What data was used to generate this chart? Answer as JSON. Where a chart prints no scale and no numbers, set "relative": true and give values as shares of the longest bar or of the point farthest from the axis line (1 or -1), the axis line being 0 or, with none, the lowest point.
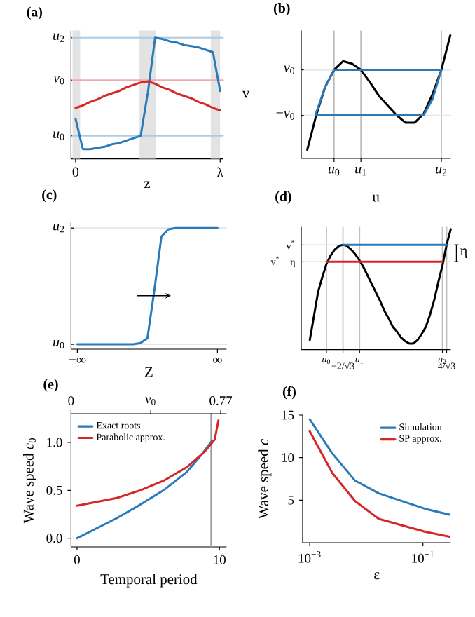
{
  "chart_data": [
    {
      "type": "line",
      "title": "(a)",
      "xlabel": "z",
      "relative": true,
      "categories": [
        "0",
        null,
        null,
        null,
        null,
        null,
        null,
        null,
        null,
        null,
        null,
        null,
        null,
        null,
        null,
        null,
        null,
        null,
        null,
        null,
        "λ"
      ],
      "ref_lines": [
        {
          "axis": "y",
          "value": 1,
          "color": "#a9cbe6",
          "label": "*u*$_{2}$"
        },
        {
          "axis": "y",
          "value": 0.19,
          "color": "#a9cbe6",
          "label": "*u*$_{0}$"
        },
        {
          "axis": "y",
          "value": 0.65,
          "color": "#f2abab",
          "label": "*v*$_{0}$"
        }
      ],
      "series": [
        {
          "color": "#2a7ab9",
          "values": [
            0.33,
            0.08,
            0.08,
            0.09,
            0.1,
            0.12,
            0.13,
            0.15,
            0.17,
            0.19,
            0.55,
            1,
            0.99,
            0.97,
            0.96,
            0.94,
            0.93,
            0.92,
            0.9,
            0.88,
            0.56
          ]
        },
        {
          "color": "#d62728",
          "values": [
            0.42,
            0.44,
            0.47,
            0.49,
            0.52,
            0.54,
            0.56,
            0.59,
            0.61,
            0.63,
            0.64,
            0.62,
            0.59,
            0.57,
            0.54,
            0.52,
            0.5,
            0.47,
            0.45,
            0.42,
            0.4
          ]
        }
      ]
    },
    {
      "type": "line",
      "title": "(b)",
      "xlabel": "u",
      "ylabel": "v",
      "relative": true,
      "grid": "x",
      "categories": [
        null,
        null,
        null,
        "*u*$_{0}$",
        null,
        null,
        "*u*$_{1}$",
        null,
        null,
        null,
        null,
        null,
        null,
        null,
        null,
        "*u*$_{2}$",
        null
      ],
      "ref_lines": [
        {
          "axis": "y",
          "value": 0.35,
          "color": "#e6e6e6",
          "label": "−*v*$_{0}$"
        },
        {
          "axis": "y",
          "value": 0.72,
          "color": "#e6e6e6",
          "label": "*v*$_{0}$"
        }
      ],
      "series": [
        {
          "color": "#000000",
          "values": [
            0.07,
            0.35,
            0.58,
            0.72,
            0.79,
            0.77,
            0.72,
            0.62,
            0.51,
            0.43,
            0.35,
            0.29,
            0.29,
            0.36,
            0.52,
            0.72,
            1
          ]
        },
        {
          "color": "#2a7ab9",
          "values": [
            null,
            0.37,
            0.58,
            0.72,
            0.72,
            0.72,
            0.72,
            0.72,
            0.72,
            0.72,
            0.72,
            0.72,
            0.72,
            0.72,
            0.72,
            0.72,
            null
          ]
        },
        {
          "color": "#2a7ab9",
          "values": [
            null,
            0.35,
            0.35,
            0.35,
            0.35,
            0.35,
            0.35,
            0.35,
            0.35,
            0.35,
            0.35,
            0.35,
            0.35,
            0.35,
            0.48,
            0.72,
            null
          ]
        }
      ]
    },
    {
      "type": "line",
      "title": "(c)",
      "xlabel": "Z",
      "relative": true,
      "categories": [
        "−∞",
        null,
        null,
        null,
        null,
        null,
        null,
        null,
        null,
        null,
        null,
        null,
        null,
        null,
        null,
        null,
        null,
        null,
        null,
        null,
        "∞"
      ],
      "ref_lines": [
        {
          "axis": "y",
          "value": 0.04,
          "color": "#e6e6e6",
          "label": "*u*$_{0}$"
        },
        {
          "axis": "y",
          "value": 1,
          "color": "#e6e6e6",
          "label": "*u*$_{2}$"
        }
      ],
      "series": [
        {
          "color": "#2a7ab9",
          "values": [
            0.04,
            0.04,
            0.04,
            0.04,
            0.04,
            0.04,
            0.04,
            0.04,
            0.04,
            0.05,
            0.09,
            0.49,
            0.93,
            0.99,
            1,
            1,
            1,
            1,
            1,
            1,
            1
          ]
        }
      ]
    },
    {
      "type": "line",
      "title": "(d)",
      "relative": true,
      "grid": "x",
      "categories": [
        null,
        null,
        null,
        null,
        null,
        "*u*$_{0}$",
        null,
        null,
        null,
        "−2/√3",
        null,
        null,
        null,
        "*u*$_{1}$",
        null,
        null,
        null,
        null,
        null,
        null,
        null,
        null,
        null,
        null,
        null,
        null,
        null,
        null,
        null,
        null,
        null,
        null,
        null,
        "*u*$_{2}$",
        "4/√3",
        null
      ],
      "ref_lines": [
        {
          "axis": "y",
          "value": 0.73,
          "color": "#e6e6e6",
          "label": "v$^{*}$ − η"
        },
        {
          "axis": "y",
          "value": 0.87,
          "color": "#e6e6e6",
          "label": "v$^{*}$"
        }
      ],
      "annotations": [
        "η"
      ],
      "series": [
        {
          "color": "#000000",
          "values": [
            null,
            0.08,
            0.28,
            0.48,
            0.6,
            0.71,
            0.78,
            0.83,
            0.86,
            0.87,
            0.86,
            0.83,
            0.79,
            0.74,
            0.68,
            0.61,
            0.54,
            0.47,
            0.4,
            0.32,
            0.26,
            0.19,
            0.15,
            0.1,
            0.07,
            0.05,
            0.05,
            0.08,
            0.13,
            0.19,
            0.29,
            0.41,
            0.56,
            0.7,
            0.87,
            1
          ]
        },
        {
          "color": "#2a7ab9",
          "values": [
            null,
            null,
            null,
            null,
            null,
            null,
            null,
            null,
            null,
            0.87,
            0.87,
            0.87,
            0.87,
            0.87,
            0.87,
            0.87,
            0.87,
            0.87,
            0.87,
            0.87,
            0.87,
            0.87,
            0.87,
            0.87,
            0.87,
            0.87,
            0.87,
            0.87,
            0.87,
            0.87,
            0.87,
            0.87,
            0.87,
            0.87,
            0.87,
            null
          ]
        },
        {
          "color": "#d62728",
          "values": [
            null,
            null,
            null,
            null,
            null,
            0.73,
            0.73,
            0.73,
            0.73,
            0.73,
            0.73,
            0.73,
            0.73,
            0.73,
            0.73,
            0.73,
            0.73,
            0.73,
            0.73,
            0.73,
            0.73,
            0.73,
            0.73,
            0.73,
            0.73,
            0.73,
            0.73,
            0.73,
            0.73,
            0.73,
            0.73,
            0.73,
            0.73,
            0.73,
            null,
            null
          ]
        }
      ]
    },
    {
      "type": "line",
      "title": "(e)",
      "xlabel": "Temporal period",
      "ylabel": "Wave speed *c*$_{0}$",
      "legend": "top left",
      "xlim": [
        -0.42,
        10.5
      ],
      "ylim": [
        -0.09,
        1.3
      ],
      "xticks": [
        0,
        10
      ],
      "yticks": [
        {
          "value": 0,
          "label": "0.0"
        },
        {
          "value": 0.5,
          "label": "0.5"
        },
        {
          "value": 1,
          "label": "1.0"
        }
      ],
      "x2lim": [
        0,
        0.8
      ],
      "x2ticks": [
        0,
        {
          "value": 0.41,
          "label": "*v*$_{0}$"
        },
        0.77
      ],
      "ref_lines": [
        {
          "axis": "x",
          "value": 9.41,
          "color": "#9a9a9a"
        }
      ],
      "series": [
        {
          "name": "Exact roots",
          "color": "#2a7ab9",
          "x": [
            0,
            2.79,
            4.43,
            6.07,
            7.7,
            8.68,
            9.34,
            9.5
          ],
          "values": [
            0,
            0.21,
            0.35,
            0.5,
            0.69,
            0.86,
            0.99,
            1.02
          ]
        },
        {
          "name": "Parabolic approx.",
          "color": "#d62728",
          "x": [
            0,
            2.79,
            4.43,
            6.07,
            7.7,
            9.0,
            9.67,
            9.93
          ],
          "values": [
            0.34,
            0.42,
            0.5,
            0.6,
            0.74,
            0.91,
            1.03,
            1.23
          ]
        }
      ]
    },
    {
      "type": "line",
      "title": "(f)",
      "xlabel": "ε",
      "ylabel": "Wave speed *c*",
      "legend": "top right",
      "log": "x",
      "xlim": [
        0.00075,
        0.31
      ],
      "ylim": [
        0,
        15
      ],
      "xticks": [
        {
          "value": 0.001,
          "label": "10$^{−3}$"
        },
        {
          "value": 0.1,
          "label": "10$^{−1}$"
        }
      ],
      "yticks": [
        5,
        10,
        15
      ],
      "series": [
        {
          "name": "Simulation",
          "color": "#2a7ab9",
          "x": [
            0.001,
            0.0025,
            0.0063,
            0.0166,
            0.107,
            0.295
          ],
          "values": [
            14.5,
            10.5,
            7.3,
            5.8,
            4.0,
            3.3
          ]
        },
        {
          "name": "SP approx.",
          "color": "#d62728",
          "x": [
            0.001,
            0.0025,
            0.0063,
            0.0166,
            0.107,
            0.295
          ],
          "values": [
            13.1,
            8.2,
            4.9,
            2.8,
            1.3,
            0.7
          ]
        }
      ]
    }
  ]
}
